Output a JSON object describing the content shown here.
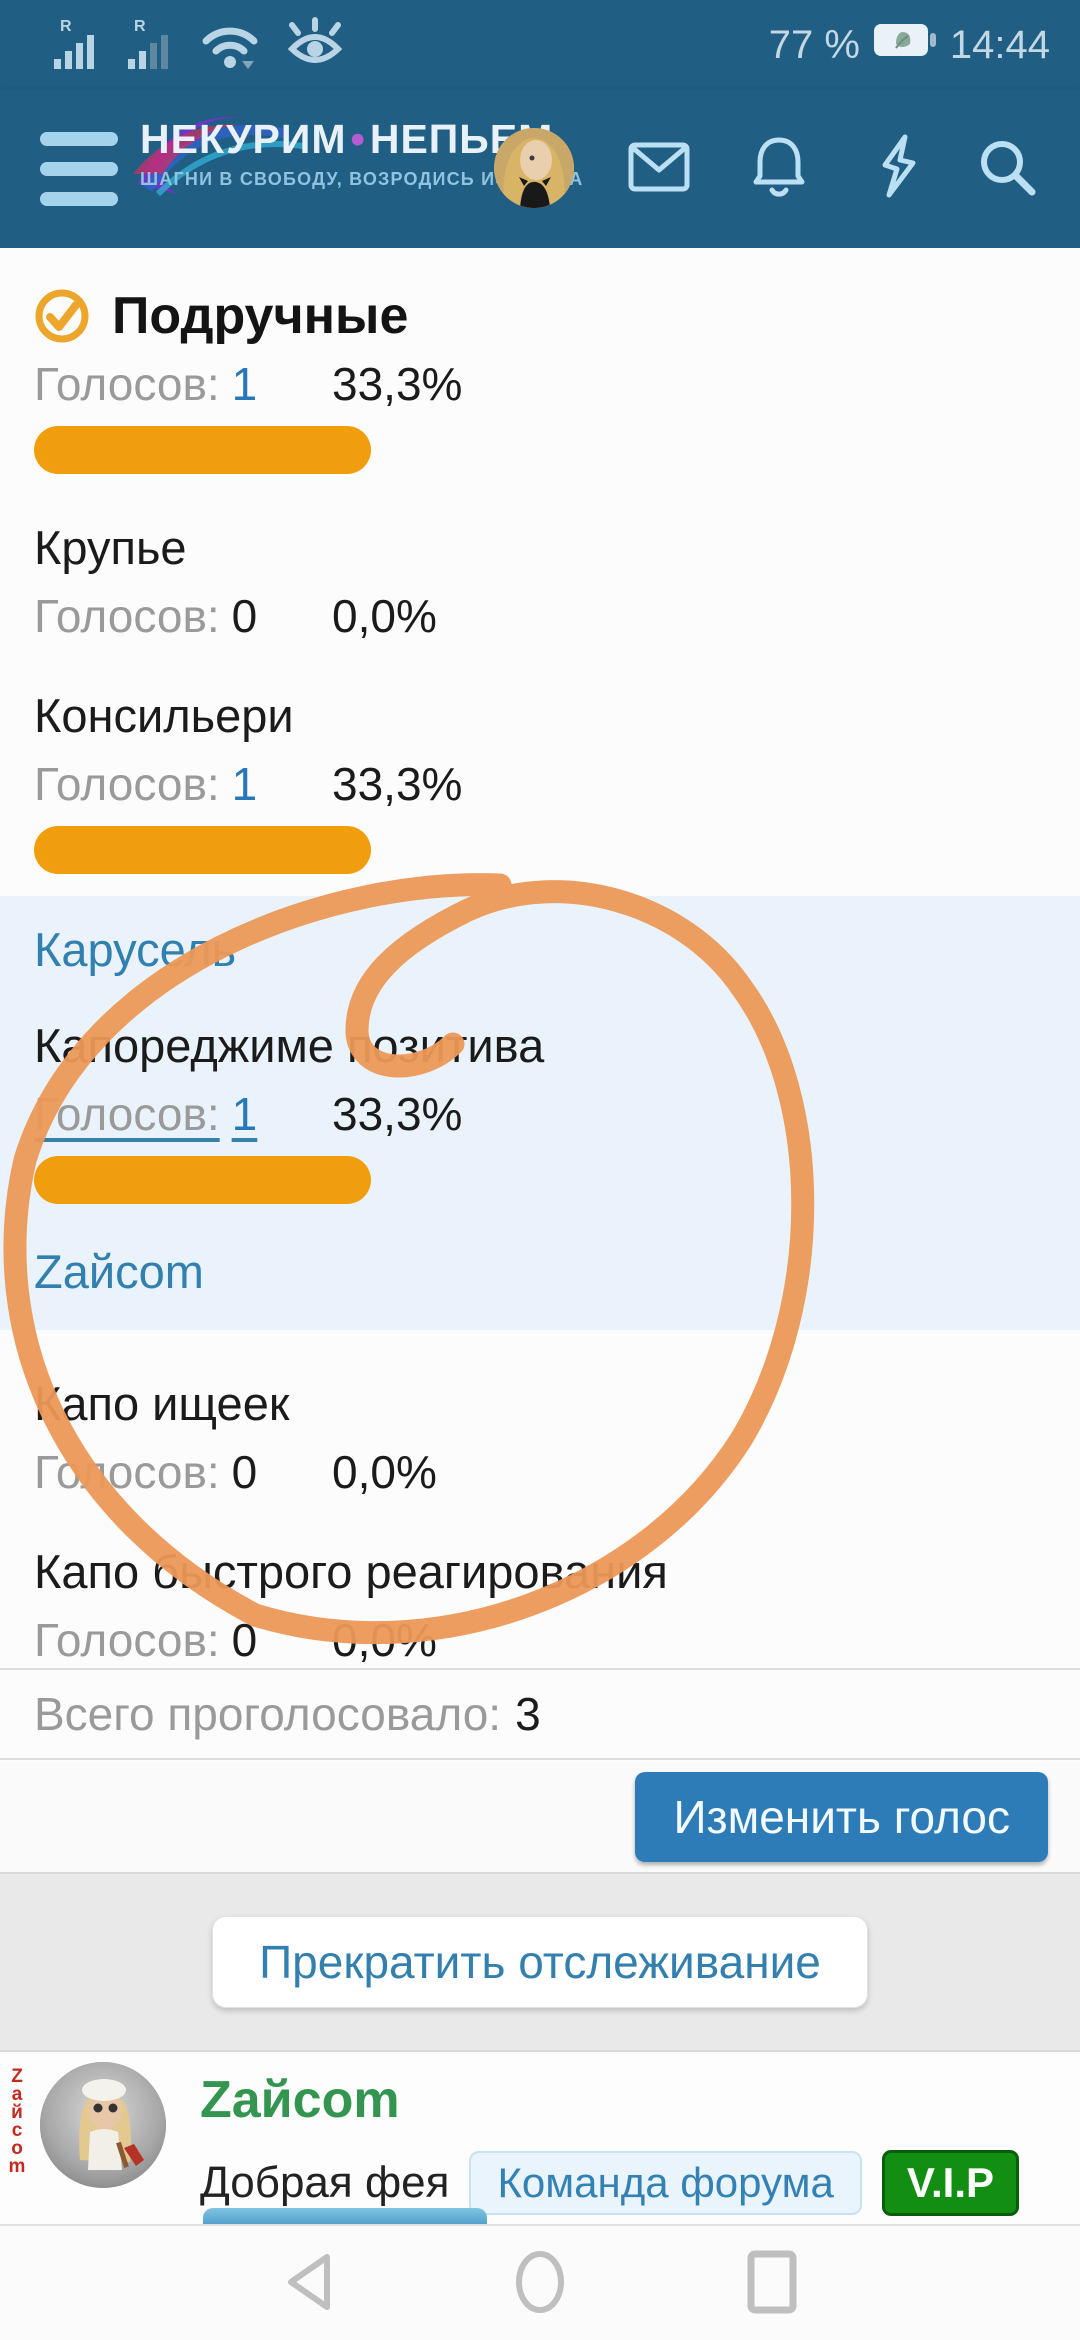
{
  "status_bar": {
    "battery_percent": "77 %",
    "time": "14:44",
    "icons": [
      "signal-r-1",
      "signal-r-2",
      "wifi",
      "eye-comfort",
      "battery-leaf"
    ]
  },
  "header": {
    "logo_line1": "НЕКУРИМ",
    "logo_dot": "•",
    "logo_line2": "НЕПЬЕМ",
    "tagline": "ШАГНИ В СВОБОДУ, ВОЗРОДИСЬ ИЗ ПЕПЛА",
    "icons": [
      "menu",
      "avatar",
      "mail",
      "bell",
      "bolt",
      "search"
    ]
  },
  "poll": {
    "votes_label": "Голосов:",
    "rows": [
      {
        "label": "Подручные",
        "votes": "1",
        "percent": "33,3%",
        "selected": true
      },
      {
        "label": "Крупье",
        "votes": "0",
        "percent": "0,0%"
      },
      {
        "label": "Консильери",
        "votes": "1",
        "percent": "33,3%"
      },
      {
        "label": "Карусель",
        "type": "voter-link"
      },
      {
        "label": "Капореджиме позитива",
        "votes": "1",
        "percent": "33,3%",
        "votes_linked": true
      },
      {
        "label": "Zайcom",
        "type": "voter-link"
      },
      {
        "label": "Капо ищеек",
        "votes": "0",
        "percent": "0,0%"
      },
      {
        "label": "Капо быстрого реагирования",
        "votes": "0",
        "percent": "0,0%"
      }
    ],
    "total_label": "Всего проголосовало:",
    "total_value": "3",
    "change_vote_button": "Изменить голос",
    "unfollow_button": "Прекратить отслеживание"
  },
  "user_card": {
    "username": "Zайcom",
    "custom_title": "Добрая фея",
    "badges": [
      {
        "label": "Команда форума",
        "style": "team"
      },
      {
        "label": "V.I.P",
        "style": "vip"
      }
    ],
    "avatar_vertical_text": "Zайcom"
  },
  "annotation": {
    "shape": "hand-drawn-circle",
    "color": "#EC9857"
  },
  "colors": {
    "header_bg": "#215E83",
    "accent_button": "#2D7CB8",
    "link_blue": "#3180AF",
    "bar_orange": "#F09D0E",
    "highlight_bg": "#EAF3FB",
    "vip_green": "#128F12",
    "username_green": "#349551",
    "annotation_orange": "#EC9857"
  },
  "nav_bar": {
    "icons": [
      "back",
      "home",
      "recents"
    ]
  }
}
